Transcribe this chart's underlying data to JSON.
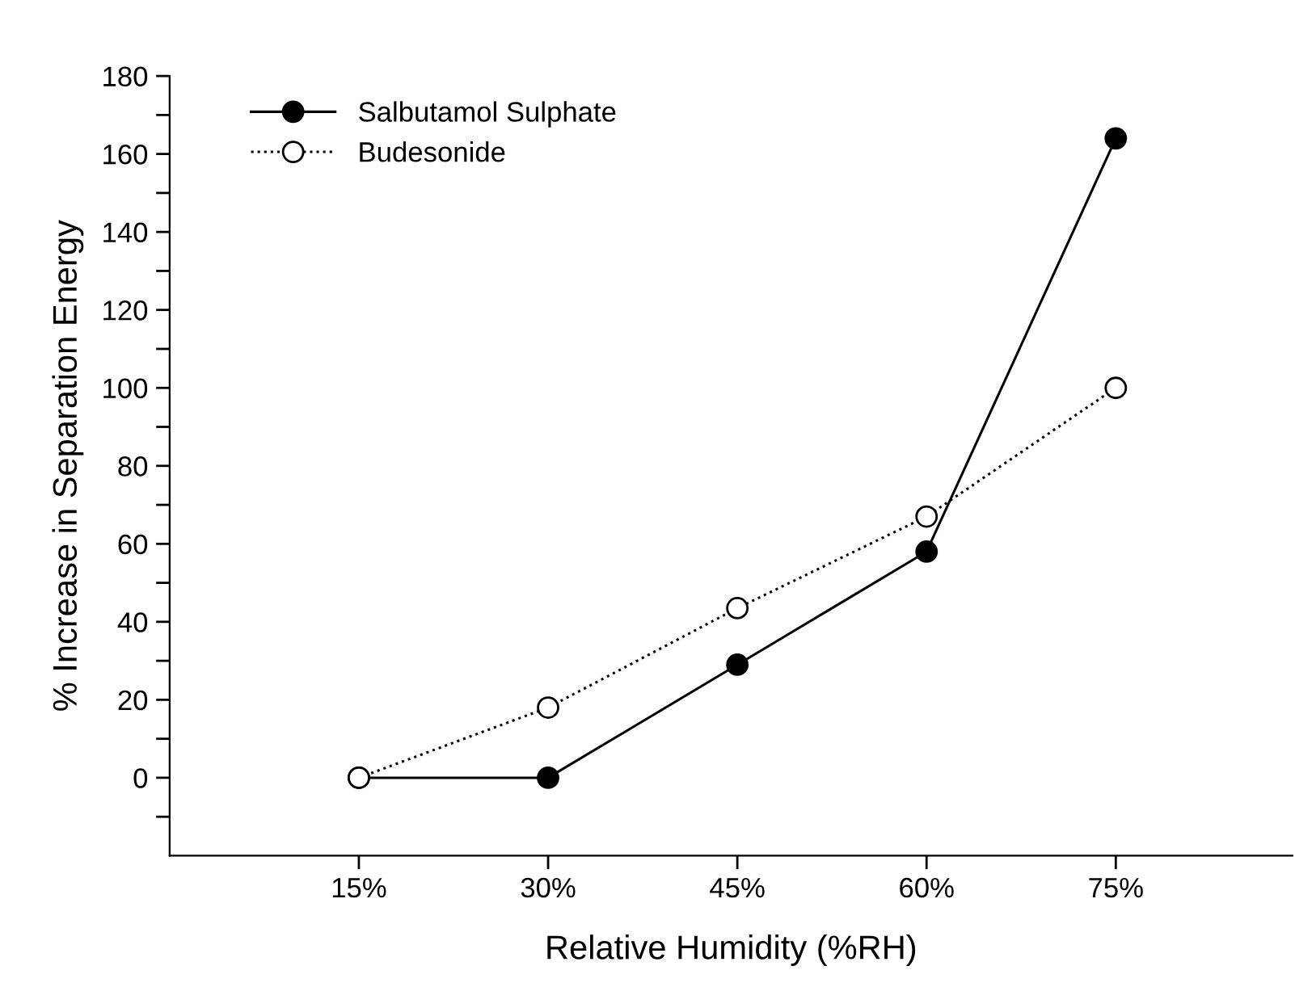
{
  "chart_data": {
    "type": "line",
    "xlabel": "Relative Humidity (%RH)",
    "ylabel": "% Increase in Separation Energy",
    "x": [
      15,
      30,
      45,
      60,
      75
    ],
    "series": [
      {
        "name": "Salbutamol Sulphate",
        "color": "#000000",
        "values": [
          0,
          0,
          29,
          58,
          164
        ],
        "marker": "circle",
        "line_style": "solid"
      },
      {
        "name": "Budesonide",
        "color": "#000000",
        "values": [
          0,
          18,
          43.5,
          67,
          100
        ],
        "marker": "circle",
        "line_style": "dotted"
      }
    ],
    "xlim": [
      0,
      89
    ],
    "xticks": [
      {
        "value": 15,
        "label": "15%"
      },
      {
        "value": 30,
        "label": "30%"
      },
      {
        "value": 45,
        "label": "45%"
      },
      {
        "value": 60,
        "label": "60%"
      },
      {
        "value": 75,
        "label": "75%"
      }
    ],
    "ylim": [
      -20,
      180
    ],
    "yticks": [
      {
        "value": -10,
        "label": null
      },
      0,
      {
        "value": 10,
        "label": null
      },
      20,
      {
        "value": 30,
        "label": null
      },
      40,
      {
        "value": 50,
        "label": null
      },
      60,
      {
        "value": 70,
        "label": null
      },
      80,
      {
        "value": 90,
        "label": null
      },
      100,
      {
        "value": 110,
        "label": null
      },
      120,
      {
        "value": 130,
        "label": null
      },
      140,
      {
        "value": 150,
        "label": null
      },
      160,
      {
        "value": 170,
        "label": null
      },
      180
    ],
    "grid": false,
    "legend": "top left"
  }
}
